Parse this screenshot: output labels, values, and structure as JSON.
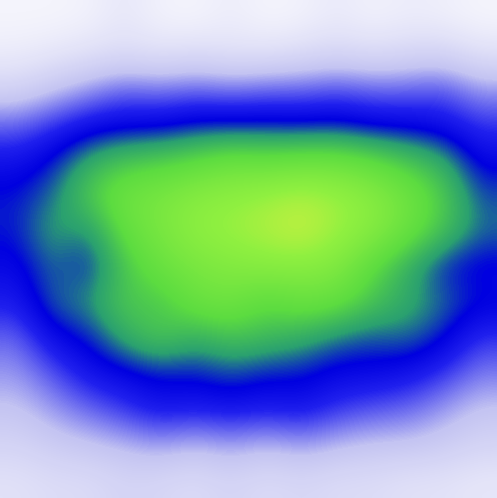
{
  "chart_data": {
    "type": "heatmap",
    "tick_labels": false,
    "cells": [
      [
        0.03,
        0.03,
        0.04,
        0.08,
        0.04,
        0.03,
        0.06,
        0.03,
        0.04,
        0.07,
        0.04,
        0.06,
        0.05,
        0.03
      ],
      [
        0.06,
        0.08,
        0.1,
        0.12,
        0.1,
        0.12,
        0.1,
        0.1,
        0.12,
        0.14,
        0.12,
        0.14,
        0.15,
        0.1
      ],
      [
        0.15,
        0.2,
        0.25,
        0.3,
        0.28,
        0.3,
        0.28,
        0.3,
        0.3,
        0.32,
        0.3,
        0.3,
        0.32,
        0.25
      ],
      [
        0.3,
        0.35,
        0.4,
        0.42,
        0.42,
        0.45,
        0.45,
        0.45,
        0.44,
        0.45,
        0.42,
        0.42,
        0.4,
        0.35
      ],
      [
        0.4,
        0.45,
        0.55,
        0.6,
        0.62,
        0.65,
        0.7,
        0.68,
        0.7,
        0.7,
        0.66,
        0.6,
        0.55,
        0.42
      ],
      [
        0.45,
        0.5,
        0.62,
        0.72,
        0.75,
        0.8,
        0.82,
        0.85,
        0.88,
        0.85,
        0.8,
        0.72,
        0.62,
        0.48
      ],
      [
        0.45,
        0.55,
        0.5,
        0.68,
        0.75,
        0.82,
        0.85,
        0.88,
        0.92,
        0.85,
        0.8,
        0.7,
        0.6,
        0.5
      ],
      [
        0.42,
        0.5,
        0.45,
        0.6,
        0.7,
        0.75,
        0.78,
        0.8,
        0.8,
        0.78,
        0.65,
        0.55,
        0.45,
        0.42
      ],
      [
        0.38,
        0.5,
        0.52,
        0.62,
        0.6,
        0.7,
        0.72,
        0.65,
        0.7,
        0.68,
        0.6,
        0.55,
        0.5,
        0.45
      ],
      [
        0.3,
        0.42,
        0.45,
        0.55,
        0.62,
        0.55,
        0.6,
        0.58,
        0.55,
        0.5,
        0.48,
        0.5,
        0.45,
        0.35
      ],
      [
        0.25,
        0.32,
        0.4,
        0.42,
        0.45,
        0.45,
        0.48,
        0.45,
        0.45,
        0.42,
        0.42,
        0.4,
        0.35,
        0.28
      ],
      [
        0.2,
        0.25,
        0.3,
        0.35,
        0.4,
        0.38,
        0.4,
        0.38,
        0.4,
        0.35,
        0.32,
        0.3,
        0.25,
        0.2
      ],
      [
        0.15,
        0.18,
        0.2,
        0.22,
        0.25,
        0.22,
        0.25,
        0.22,
        0.25,
        0.22,
        0.2,
        0.2,
        0.18,
        0.15
      ],
      [
        0.1,
        0.12,
        0.12,
        0.15,
        0.14,
        0.12,
        0.15,
        0.12,
        0.14,
        0.12,
        0.12,
        0.1,
        0.1,
        0.08
      ]
    ]
  }
}
